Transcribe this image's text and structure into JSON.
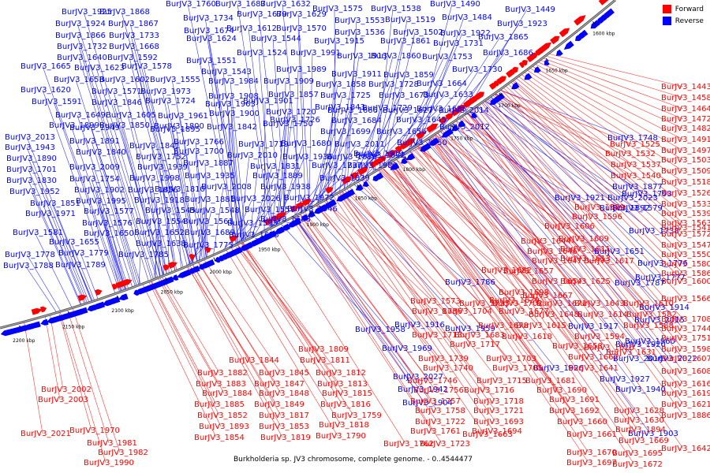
{
  "legend": {
    "forward_label": "Forward",
    "reverse_label": "Reverse",
    "forward_color": "#ff0000",
    "reverse_color": "#0000ff"
  },
  "caption": "Burkholderia sp. JV3 chromosome, complete genome. - 0..4544477",
  "scale_labels": [
    "1600 kbp",
    "1650 kbp",
    "1700 kbp",
    "1750 kbp",
    "1800 kbp",
    "1850 kbp",
    "1900 kbp",
    "1950 kbp",
    "2000 kbp",
    "2050 kbp",
    "2100 kbp",
    "2150 kbp",
    "2200 kbp"
  ],
  "reverse_labels": [
    "BurJV3_1925",
    "BurJV3_1868",
    "BurJV3_1760",
    "BurJV3_1687",
    "BurJV3_1632",
    "BurJV3_1575",
    "BurJV3_1538",
    "BurJV3_1490",
    "BurJV3_1449",
    "BurJV3_1924",
    "BurJV3_1867",
    "BurJV3_1734",
    "BurJV3_1679",
    "BurJV3_1629",
    "BurJV3_1553",
    "BurJV3_1519",
    "BurJV3_1484",
    "BurJV3_1923",
    "BurJV3_1866",
    "BurJV3_1733",
    "BurJV3_1674",
    "BurJV3_1612",
    "BurJV3_1570",
    "BurJV3_1536",
    "BurJV3_1502",
    "BurJV3_1922",
    "BurJV3_1865",
    "BurJV3_1732",
    "BurJV3_1668",
    "BurJV3_1624",
    "BurJV3_1544",
    "BurJV3_1915",
    "BurJV3_1861",
    "BurJV3_1731",
    "BurJV3_1686",
    "BurJV3_1640",
    "BurJV3_1592",
    "BurJV3_1551",
    "BurJV3_1524",
    "BurJV3_1991",
    "BurJV3_1913",
    "BurJV3_1860",
    "BurJV3_1753",
    "BurJV3_1665",
    "BurJV3_1623",
    "BurJV3_1578",
    "BurJV3_1543",
    "BurJV3_1989",
    "BurJV3_1911",
    "BurJV3_1859",
    "BurJV3_1730",
    "BurJV3_1653",
    "BurJV3_1602",
    "BurJV3_1555",
    "BurJV3_1984",
    "BurJV3_1909",
    "BurJV3_1858",
    "BurJV3_1728",
    "BurJV3_1664",
    "BurJV3_1620",
    "BurJV3_1571",
    "BurJV3_1973",
    "BurJV3_1908",
    "BurJV3_1857",
    "BurJV3_1725",
    "BurJV3_1673",
    "BurJV3_1633",
    "BurJV3_1591",
    "BurJV3_1846",
    "BurJV3_1724",
    "BurJV3_1963",
    "BurJV3_1901",
    "BurJV3_1843",
    "BurJV3_1729",
    "BurJV3_1685",
    "BurJV3_1649",
    "BurJV3_1605",
    "BurJV3_1961",
    "BurJV3_1900",
    "BurJV3_1720",
    "BurJV3_1666",
    "BurJV3_1627",
    "BurJV3_2014",
    "BurJV3_1899",
    "BurJV3_1850",
    "BurJV3_1800",
    "BurJV3_1726",
    "BurJV3_1684",
    "BurJV3_1645",
    "BurJV3_2013",
    "BurJV3_1949",
    "BurJV3_1895",
    "BurJV3_1842",
    "BurJV3_1750",
    "BurJV3_1699",
    "BurJV3_1656",
    "BurJV3_2012",
    "BurJV3_1943",
    "BurJV3_1891",
    "BurJV3_1841",
    "BurJV3_1766",
    "BurJV3_1719",
    "BurJV3_1680",
    "BurJV3_2011",
    "BurJV3_1950",
    "BurJV3_1890",
    "BurJV3_1840",
    "BurJV3_1752",
    "BurJV3_1700",
    "BurJV3_2010",
    "BurJV3_1936",
    "BurJV3_1888",
    "BurJV3_1832",
    "BurJV3_1748",
    "BurJV3_1701",
    "BurJV3_2009",
    "BurJV3_1939",
    "BurJV3_1887",
    "BurJV3_1831",
    "BurJV3_1737",
    "BurJV3_1980",
    "BurJV3_1919",
    "BurJV3_1877",
    "BurJV3_1830",
    "BurJV3_1754",
    "BurJV3_1998",
    "BurJV3_1935",
    "BurJV3_1889",
    "BurJV3_1839",
    "BurJV3_1793",
    "BurJV3_1952",
    "BurJV3_1902",
    "BurJV3_1856",
    "BurJV3_1810",
    "BurJV3_2008",
    "BurJV3_1938",
    "BurJV3_1892",
    "BurJV3_1851",
    "BurJV3_1995",
    "BurJV3_1918",
    "BurJV3_1881",
    "BurJV3_2026",
    "BurJV3_1972",
    "BurJV3_1921",
    "BurJV3_2023",
    "BurJV3_1971",
    "BurJV3_1577",
    "BurJV3_1545",
    "BurJV3_1548",
    "BurJV3_1557",
    "BurJV3_1546",
    "BurJV3_1579",
    "BurJV3_1576",
    "BurJV3_1554",
    "BurJV3_1561",
    "BurJV3_1593",
    "BurJV3_1688",
    "BurJV3_1738",
    "BurJV3_1581",
    "BurJV3_1650",
    "BurJV3_1652",
    "BurJV3_1689",
    "BurJV3_1675",
    "BurJV3_1651",
    "BurJV3_1655",
    "BurJV3_1638",
    "BurJV3_1775",
    "BurJV3_1776",
    "BurJV3_1777",
    "BurJV3_1778",
    "BurJV3_1779",
    "BurJV3_1785",
    "BurJV3_1786",
    "BurJV3_1787",
    "BurJV3_1788",
    "BurJV3_1789",
    "BurJV3_1914",
    "BurJV3_1958",
    "BurJV3_1916",
    "BurJV3_1959",
    "BurJV3_1917",
    "BurJV3_2015",
    "BurJV3_1960",
    "BurJV3_1920",
    "BurJV3_2016",
    "BurJV3_1969",
    "BurJV3_1926",
    "BurJV3_2022",
    "BurJV3_1927",
    "BurJV3_1940",
    "BurJV3_1903",
    "BurJV3_2027",
    "BurJV3_1942",
    "BurJV3_1904"
  ],
  "forward_labels": [
    "BurJV3_1443",
    "BurJV3_1458",
    "BurJV3_1464",
    "BurJV3_1472",
    "BurJV3_1482",
    "BurJV3_1491",
    "BurJV3_1525",
    "BurJV3_1497",
    "BurJV3_1532",
    "BurJV3_1503",
    "BurJV3_1537",
    "BurJV3_1509",
    "BurJV3_1540",
    "BurJV3_1518",
    "BurJV3_1526",
    "BurJV3_1533",
    "BurJV3_1589",
    "BurJV3_1539",
    "BurJV3_1596",
    "BurJV3_1563",
    "BurJV3_1541",
    "BurJV3_1606",
    "BurJV3_1572",
    "BurJV3_1609",
    "BurJV3_1547",
    "BurJV3_1644",
    "BurJV3_1611",
    "BurJV3_1550",
    "BurJV3_1646",
    "BurJV3_1613",
    "BurJV3_1580",
    "BurJV3_1647",
    "BurJV3_1617",
    "BurJV3_1586",
    "BurJV3_1682",
    "BurJV3_1654",
    "BurJV3_1625",
    "BurJV3_1657",
    "BurJV3_1600",
    "BurJV3_1698",
    "BurJV3_1667",
    "BurJV3_1639",
    "BurJV3_1566",
    "BurJV3_1573",
    "BurJV3_1735",
    "BurJV3_1702",
    "BurJV3_1671",
    "BurJV3_1643",
    "BurJV3_1610",
    "BurJV3_1736",
    "BurJV3_1704",
    "BurJV3_1677",
    "BurJV3_1648",
    "BurJV3_1614",
    "BurJV3_1582",
    "BurJV3_1708",
    "BurJV3_1678",
    "BurJV3_1615",
    "BurJV3_1588",
    "BurJV3_1744",
    "BurJV3_1713",
    "BurJV3_1683",
    "BurJV3_1618",
    "BurJV3_1594",
    "BurJV3_1751",
    "BurJV3_1717",
    "BurJV3_1658",
    "BurJV3_1626",
    "BurJV3_1598",
    "BurJV3_1809",
    "BurJV3_1739",
    "BurJV3_1703",
    "BurJV3_1662",
    "BurJV3_1631",
    "BurJV3_1607",
    "BurJV3_1844",
    "BurJV3_1811",
    "BurJV3_1740",
    "BurJV3_1705",
    "BurJV3_1641",
    "BurJV3_1608",
    "BurJV3_1882",
    "BurJV3_1845",
    "BurJV3_1812",
    "BurJV3_1746",
    "BurJV3_1715",
    "BurJV3_1681",
    "BurJV3_1616",
    "BurJV3_1883",
    "BurJV3_1847",
    "BurJV3_1813",
    "BurJV3_1756",
    "BurJV3_1716",
    "BurJV3_1690",
    "BurJV3_1619",
    "BurJV3_1884",
    "BurJV3_1848",
    "BurJV3_1815",
    "BurJV3_1757",
    "BurJV3_1718",
    "BurJV3_1691",
    "BurJV3_1621",
    "BurJV3_1885",
    "BurJV3_1849",
    "BurJV3_1816",
    "BurJV3_1758",
    "BurJV3_1721",
    "BurJV3_1692",
    "BurJV3_1628",
    "BurJV3_1886",
    "BurJV3_1852",
    "BurJV3_1817",
    "BurJV3_1759",
    "BurJV3_1722",
    "BurJV3_1693",
    "BurJV3_1660",
    "BurJV3_1630",
    "BurJV3_1893",
    "BurJV3_1853",
    "BurJV3_1818",
    "BurJV3_1761",
    "BurJV3_1694",
    "BurJV3_1661",
    "BurJV3_1894",
    "BurJV3_1854",
    "BurJV3_1819",
    "BurJV3_1790",
    "BurJV3_1762",
    "BurJV3_1723",
    "BurJV3_1663",
    "BurJV3_1669",
    "BurJV3_1642",
    "BurJV3_1695",
    "BurJV3_1670",
    "BurJV3_1697",
    "BurJV3_1672",
    "BurJV3_2002",
    "BurJV3_2003",
    "BurJV3_2021",
    "BurJV3_1970",
    "BurJV3_1981",
    "BurJV3_1982",
    "BurJV3_1990"
  ]
}
